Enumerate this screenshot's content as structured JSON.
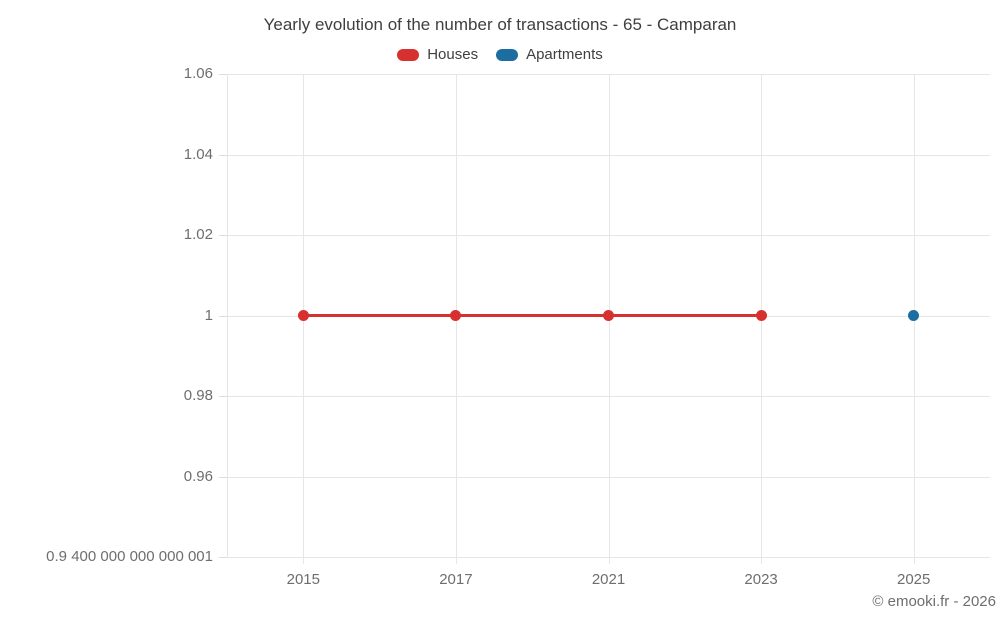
{
  "title": "Yearly evolution of the number of transactions - 65 - Camparan",
  "legend": [
    {
      "label": "Houses",
      "color": "#d7312f"
    },
    {
      "label": "Apartments",
      "color": "#1c6da0"
    }
  ],
  "copyright": "© emooki.fr - 2026",
  "colors": {
    "houses": "#d7312f",
    "apartments": "#1c6da0",
    "grid": "#e6e6e6",
    "axis_text": "#6e6e6e",
    "title_text": "#3f3f3f"
  },
  "chart_data": {
    "type": "line",
    "title": "Yearly evolution of the number of transactions - 65 - Camparan",
    "categories": [
      "2015",
      "2017",
      "2021",
      "2023",
      "2025"
    ],
    "series": [
      {
        "name": "Houses",
        "color": "#d7312f",
        "values": [
          1,
          1,
          1,
          1,
          null
        ]
      },
      {
        "name": "Apartments",
        "color": "#1c6da0",
        "values": [
          null,
          null,
          null,
          null,
          1
        ]
      }
    ],
    "xlabel": "",
    "ylabel": "",
    "ylim": [
      0.94,
      1.06
    ],
    "yticks": [
      {
        "value": 0.94,
        "label": "0.9 400 000 000 000 001"
      },
      {
        "value": 0.96,
        "label": "0.96"
      },
      {
        "value": 0.98,
        "label": "0.98"
      },
      {
        "value": 1,
        "label": "1"
      },
      {
        "value": 1.02,
        "label": "1.02"
      },
      {
        "value": 1.04,
        "label": "1.04"
      },
      {
        "value": 1.06,
        "label": "1.06"
      }
    ],
    "grid": true,
    "legend_position": "top"
  }
}
